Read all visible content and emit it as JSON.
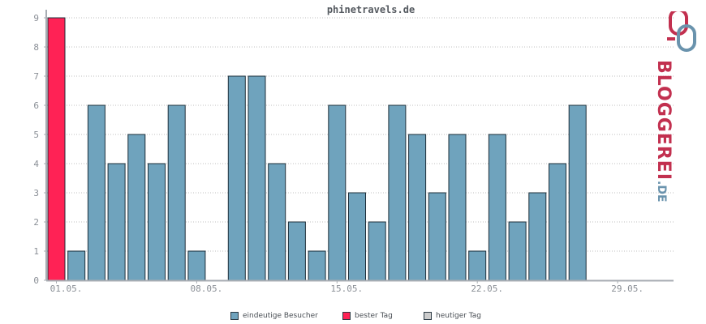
{
  "chart_data": {
    "type": "bar",
    "title": "phinetravels.de",
    "ylim": [
      0,
      9
    ],
    "yticks": [
      0,
      1,
      2,
      3,
      4,
      5,
      6,
      7,
      8,
      9
    ],
    "days": 31,
    "values": [
      9,
      1,
      6,
      4,
      5,
      4,
      6,
      1,
      0,
      7,
      7,
      4,
      2,
      1,
      6,
      3,
      2,
      6,
      5,
      3,
      5,
      1,
      5,
      2,
      3,
      4,
      6,
      0,
      0,
      0,
      0
    ],
    "best_day_index": 0,
    "xtick_labels": [
      {
        "day": 1,
        "label": "01.05."
      },
      {
        "day": 8,
        "label": "08.05."
      },
      {
        "day": 15,
        "label": "15.05."
      },
      {
        "day": 22,
        "label": "22.05."
      },
      {
        "day": 29,
        "label": "29.05."
      }
    ],
    "colors": {
      "bar": "#6fa3bd",
      "best": "#ff2255",
      "today": "#cccccc",
      "stroke": "#1e2f3a",
      "grid": "#bfbfbf",
      "axis": "#a8adb3"
    }
  },
  "legend": {
    "items": [
      {
        "label": "eindeutige Besucher",
        "color": "#6fa3bd"
      },
      {
        "label": "bester Tag",
        "color": "#ff2255"
      },
      {
        "label": "heutiger Tag",
        "color": "#cccccc"
      }
    ]
  },
  "logo": {
    "main": "BLOGGEREI",
    "suffix": ".DE"
  }
}
